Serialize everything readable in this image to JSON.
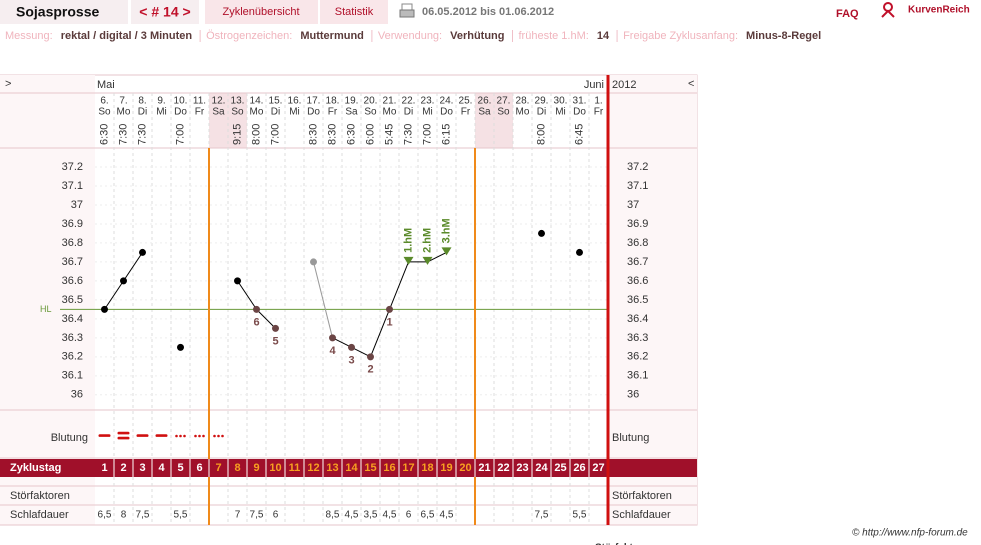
{
  "header": {
    "title": "Sojasprosse",
    "cycle_nav": "< # 14 >",
    "tabs": [
      "Zyklenübersicht",
      "Statistik"
    ],
    "date_range": "06.05.2012 bis 01.06.2012",
    "faq": "FAQ",
    "logo": "KurvenReich"
  },
  "info": [
    {
      "label": "Messung:",
      "value": "rektal / digital / 3 Minuten"
    },
    {
      "label": "Östrogenzeichen:",
      "value": "Muttermund"
    },
    {
      "label": "Verwendung:",
      "value": "Verhütung"
    },
    {
      "label": "früheste 1.hM:",
      "value": "14"
    },
    {
      "label": "Freigabe Zyklusanfang:",
      "value": "Minus-8-Regel"
    }
  ],
  "chart": {
    "nav_prev": ">",
    "nav_next": "<",
    "month_start": "Mai",
    "month_end": "Juni",
    "year": "2012",
    "dates": [
      "6.",
      "7.",
      "8.",
      "9.",
      "10.",
      "11.",
      "12.",
      "13.",
      "14.",
      "15.",
      "16.",
      "17.",
      "18.",
      "19.",
      "20.",
      "21.",
      "22.",
      "23.",
      "24.",
      "25.",
      "26.",
      "27.",
      "28.",
      "29.",
      "30.",
      "31.",
      "1."
    ],
    "weekdays": [
      "So",
      "Mo",
      "Di",
      "Mi",
      "Do",
      "Fr",
      "Sa",
      "So",
      "Mo",
      "Di",
      "Mi",
      "Do",
      "Fr",
      "Sa",
      "So",
      "Mo",
      "Di",
      "Mi",
      "Do",
      "Fr",
      "Sa",
      "So",
      "Mo",
      "Di",
      "Mi",
      "Do",
      "Fr"
    ],
    "times": [
      "6:30",
      "7:30",
      "7:30",
      null,
      "7:00",
      null,
      null,
      "9:15",
      "8:00",
      "7:00",
      null,
      "8:30",
      "8:30",
      "6:30",
      "6:00",
      "5:45",
      "7:30",
      "7:00",
      "6:15",
      null,
      null,
      null,
      null,
      "8:00",
      null,
      "6:45",
      null
    ],
    "temperatures": [
      36.45,
      36.6,
      36.75,
      null,
      36.25,
      null,
      null,
      36.6,
      36.45,
      36.35,
      null,
      36.7,
      36.3,
      36.25,
      36.2,
      36.45,
      36.7,
      36.7,
      36.75,
      null,
      null,
      null,
      null,
      36.85,
      null,
      36.75,
      null
    ],
    "excluded_cycle_days": [
      12
    ],
    "low_labels": [
      null,
      null,
      null,
      null,
      null,
      null,
      null,
      null,
      "6",
      "5",
      null,
      null,
      "4",
      "3",
      "2",
      "1",
      null,
      null,
      null,
      null,
      null,
      null,
      null,
      null,
      null,
      null,
      null
    ],
    "hm_labels": [
      null,
      null,
      null,
      null,
      null,
      null,
      null,
      null,
      null,
      null,
      null,
      null,
      null,
      null,
      null,
      null,
      "1.hM",
      "2.hM",
      "3.hM",
      null,
      null,
      null,
      null,
      null,
      null,
      null,
      null
    ],
    "coverline": 36.45,
    "coverline_label": "HL",
    "ylim": [
      35.92,
      37.3
    ],
    "yticks": [
      37.2,
      37.1,
      37,
      36.9,
      36.8,
      36.7,
      36.6,
      36.5,
      36.4,
      36.3,
      36.2,
      36.1,
      36
    ],
    "rows": {
      "bleeding": "Blutung",
      "cycle_day": "Zyklustag",
      "disturbances": "Störfaktoren",
      "sleep": "Schlafdauer"
    },
    "cycle_days": [
      1,
      2,
      3,
      4,
      5,
      6,
      7,
      8,
      9,
      10,
      11,
      12,
      13,
      14,
      15,
      16,
      17,
      18,
      19,
      20,
      21,
      22,
      23,
      24,
      25,
      26,
      27
    ],
    "fertile_window": [
      7,
      20
    ],
    "sleep": [
      "6,5",
      "8",
      "7,5",
      null,
      "5,5",
      null,
      null,
      "7",
      "7,5",
      "6",
      null,
      null,
      "8,5",
      "4,5",
      "3,5",
      "4,5",
      "6",
      "6,5",
      "4,5",
      null,
      null,
      null,
      null,
      "7,5",
      null,
      "5,5",
      null
    ],
    "copyright": "© http://www.nfp-forum.de"
  }
}
